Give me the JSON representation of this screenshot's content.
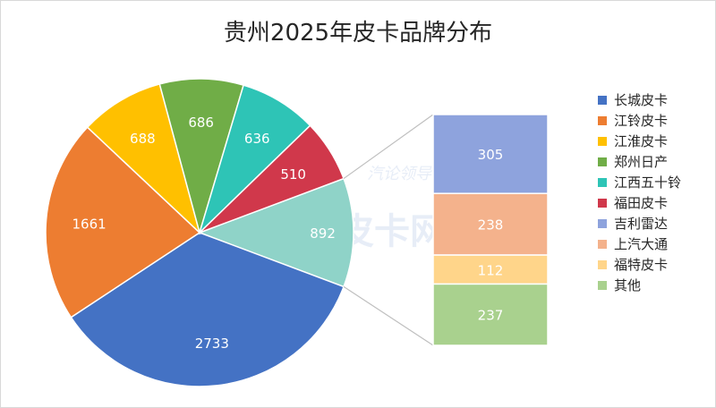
{
  "chart_data": {
    "type": "bar-of-pie",
    "title": "贵州2025年皮卡品牌分布",
    "pie": {
      "slices": [
        {
          "name": "长城皮卡",
          "value": 2733,
          "color": "#4472c4"
        },
        {
          "name": "江铃皮卡",
          "value": 1661,
          "color": "#ed7d31"
        },
        {
          "name": "江淮皮卡",
          "value": 688,
          "color": "#ffc000"
        },
        {
          "name": "郑州日产",
          "value": 686,
          "color": "#70ad47"
        },
        {
          "name": "江西五十铃",
          "value": 636,
          "color": "#2ec4b6"
        },
        {
          "name": "福田皮卡",
          "value": 510,
          "color": "#d0384b"
        },
        {
          "name": "",
          "value": 892,
          "label": "892",
          "color": "#8fd3c8",
          "is_other": true
        }
      ]
    },
    "bar": {
      "segments": [
        {
          "name": "吉利雷达",
          "value": 305,
          "color": "#8ea3dd"
        },
        {
          "name": "上汽大通",
          "value": 238,
          "color": "#f4b28c"
        },
        {
          "name": "福特皮卡",
          "value": 112,
          "color": "#ffd58a"
        },
        {
          "name": "其他",
          "value": 237,
          "color": "#a9d18e"
        }
      ]
    },
    "legend": {
      "position": "right",
      "items": [
        {
          "name": "长城皮卡",
          "color": "#4472c4"
        },
        {
          "name": "江铃皮卡",
          "color": "#ed7d31"
        },
        {
          "name": "江淮皮卡",
          "color": "#ffc000"
        },
        {
          "name": "郑州日产",
          "color": "#70ad47"
        },
        {
          "name": "江西五十铃",
          "color": "#2ec4b6"
        },
        {
          "name": "福田皮卡",
          "color": "#d0384b"
        },
        {
          "name": "吉利雷达",
          "color": "#8ea3dd"
        },
        {
          "name": "上汽大通",
          "color": "#f4b28c"
        },
        {
          "name": "福特皮卡",
          "color": "#ffd58a"
        },
        {
          "name": "其他",
          "color": "#a9d18e"
        }
      ]
    },
    "watermark": {
      "text": "中国皮卡网",
      "tagline": "汽论领导者"
    }
  }
}
